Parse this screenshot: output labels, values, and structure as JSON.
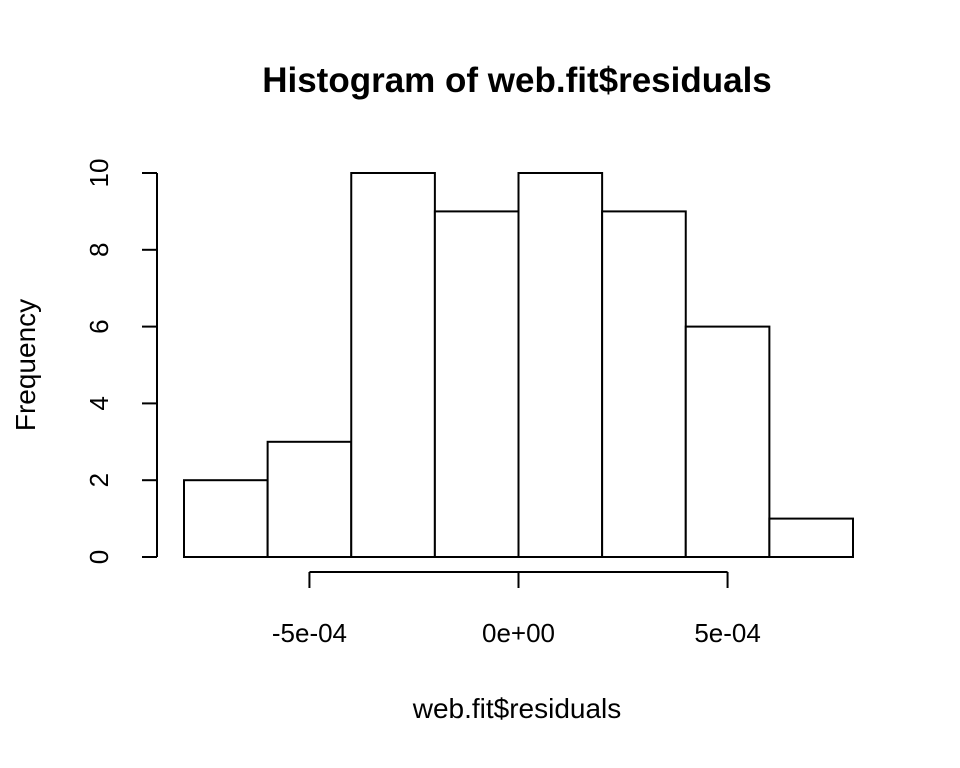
{
  "chart_data": {
    "type": "bar",
    "title": "Histogram of web.fit$residuals",
    "xlabel": "web.fit$residuals",
    "ylabel": "Frequency",
    "bins": [
      {
        "x0": -0.0008,
        "x1": -0.0006,
        "count": 2
      },
      {
        "x0": -0.0006,
        "x1": -0.0004,
        "count": 3
      },
      {
        "x0": -0.0004,
        "x1": -0.0002,
        "count": 10
      },
      {
        "x0": -0.0002,
        "x1": 0.0,
        "count": 9
      },
      {
        "x0": 0.0,
        "x1": 0.0002,
        "count": 10
      },
      {
        "x0": 0.0002,
        "x1": 0.0004,
        "count": 9
      },
      {
        "x0": 0.0004,
        "x1": 0.0006,
        "count": 6
      },
      {
        "x0": 0.0006,
        "x1": 0.0008,
        "count": 1
      }
    ],
    "x_ticks": [
      {
        "value": -0.0005,
        "label": "-5e-04"
      },
      {
        "value": 0.0,
        "label": "0e+00"
      },
      {
        "value": 0.0005,
        "label": "5e-04"
      }
    ],
    "y_ticks": [
      {
        "value": 0,
        "label": "0"
      },
      {
        "value": 2,
        "label": "2"
      },
      {
        "value": 4,
        "label": "4"
      },
      {
        "value": 6,
        "label": "6"
      },
      {
        "value": 8,
        "label": "8"
      },
      {
        "value": 10,
        "label": "10"
      }
    ],
    "xlim": [
      -0.0008,
      0.0008
    ],
    "ylim": [
      0,
      10
    ],
    "grid": false,
    "bar_fill": "#ffffff",
    "bar_stroke": "#000000"
  }
}
